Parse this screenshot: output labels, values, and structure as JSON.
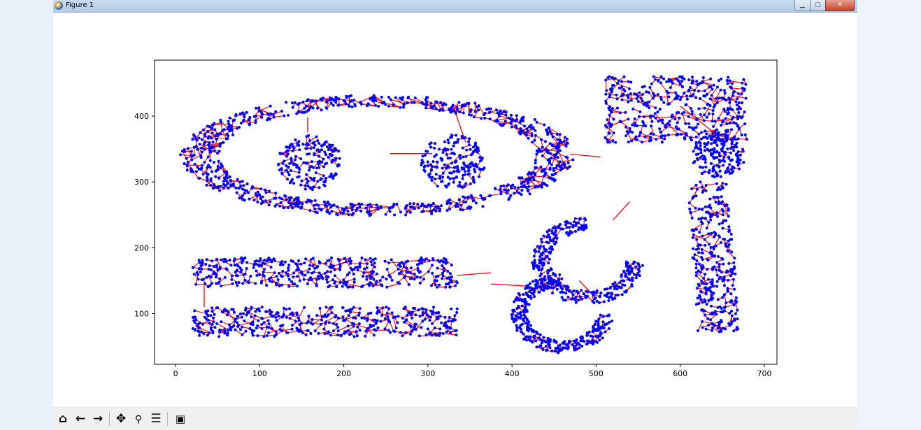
{
  "window": {
    "title": "Figure 1",
    "icon": "matplotlib-icon",
    "controls": {
      "minimize": "minimize-icon",
      "maximize": "maximize-icon",
      "close": "close-icon"
    }
  },
  "toolbar": {
    "buttons": [
      {
        "name": "home-button",
        "icon": "home-icon",
        "glyph": "⌂"
      },
      {
        "name": "back-button",
        "icon": "back-arrow-icon",
        "glyph": "←"
      },
      {
        "name": "forward-button",
        "icon": "forward-arrow-icon",
        "glyph": "→"
      },
      {
        "name": "pan-button",
        "icon": "pan-icon",
        "glyph": "✥"
      },
      {
        "name": "zoom-button",
        "icon": "zoom-magnifier-icon",
        "glyph": "🔍"
      },
      {
        "name": "configure-subplots-button",
        "icon": "sliders-icon",
        "glyph": "☰"
      },
      {
        "name": "save-button",
        "icon": "floppy-disk-icon",
        "glyph": "💾"
      }
    ]
  },
  "chart_data": {
    "type": "scatter",
    "title": "",
    "xlabel": "",
    "ylabel": "",
    "xlim": [
      -25,
      715
    ],
    "ylim": [
      23,
      485
    ],
    "xticks": [
      0,
      100,
      200,
      300,
      400,
      500,
      600,
      700
    ],
    "yticks": [
      100,
      200,
      300,
      400
    ],
    "grid": false,
    "point_color": "#0000ff",
    "edge_color": "#ff0000",
    "clusters": [
      {
        "shape": "ellipse-ring",
        "center": [
          240,
          340
        ],
        "radii": [
          230,
          90
        ]
      },
      {
        "shape": "blob",
        "center": [
          160,
          330
        ],
        "radius": 38
      },
      {
        "shape": "blob",
        "center": [
          330,
          330
        ],
        "radius": 38
      },
      {
        "shape": "band",
        "x": [
          20,
          335
        ],
        "y": [
          140,
          185
        ]
      },
      {
        "shape": "band",
        "x": [
          20,
          335
        ],
        "y": [
          65,
          110
        ]
      },
      {
        "shape": "blob",
        "center": [
          645,
          340
        ],
        "radius": 32
      },
      {
        "shape": "wide-region",
        "x": [
          510,
          680
        ],
        "y": [
          360,
          460
        ]
      },
      {
        "shape": "arc",
        "center": [
          490,
          180
        ],
        "radius": 60
      },
      {
        "shape": "arc",
        "center": [
          460,
          100
        ],
        "radius": 55
      },
      {
        "shape": "vertical-band",
        "x": [
          615,
          665
        ],
        "y": [
          70,
          300
        ]
      }
    ],
    "bridges": [
      [
        [
          157,
          398
        ],
        [
          157,
          375
        ]
      ],
      [
        [
          255,
          343
        ],
        [
          305,
          343
        ]
      ],
      [
        [
          330,
          415
        ],
        [
          345,
          360
        ]
      ],
      [
        [
          470,
          342
        ],
        [
          505,
          338
        ]
      ],
      [
        [
          540,
          270
        ],
        [
          520,
          242
        ]
      ],
      [
        [
          600,
          415
        ],
        [
          645,
          370
        ]
      ],
      [
        [
          34,
          142
        ],
        [
          34,
          110
        ]
      ],
      [
        [
          335,
          158
        ],
        [
          375,
          162
        ]
      ],
      [
        [
          375,
          145
        ],
        [
          415,
          142
        ]
      ],
      [
        [
          480,
          150
        ],
        [
          495,
          130
        ]
      ]
    ]
  }
}
